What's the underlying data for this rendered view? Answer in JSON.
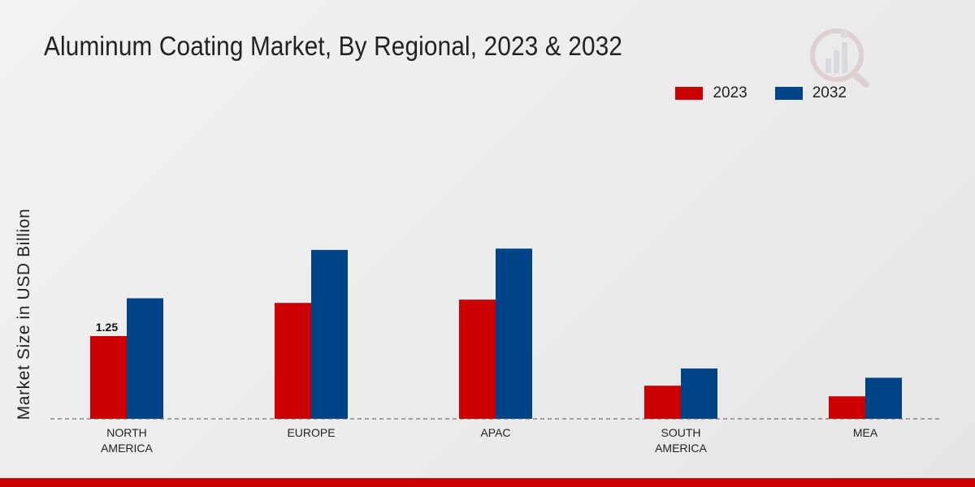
{
  "title": "Aluminum Coating Market, By Regional, 2023 & 2032",
  "legend": {
    "items": [
      {
        "label": "2023",
        "color": "#cc0000"
      },
      {
        "label": "2032",
        "color": "#004488"
      }
    ]
  },
  "chart_data": {
    "type": "bar",
    "title": "Aluminum Coating Market, By Regional, 2023 & 2032",
    "xlabel": "",
    "ylabel": "Market Size in USD Billion",
    "categories": [
      "NORTH\nAMERICA",
      "EUROPE",
      "APAC",
      "SOUTH\nAMERICA",
      "MEA"
    ],
    "series": [
      {
        "name": "2023",
        "color": "#cc0000",
        "values": [
          1.25,
          1.75,
          1.8,
          0.5,
          0.34
        ]
      },
      {
        "name": "2032",
        "color": "#004488",
        "values": [
          1.82,
          2.55,
          2.57,
          0.76,
          0.62
        ]
      }
    ],
    "data_labels": [
      {
        "series": "2023",
        "category_index": 0,
        "text": "1.25"
      }
    ],
    "ylim": [
      0,
      4.6
    ],
    "grid": false,
    "legend_position": "top-right"
  }
}
